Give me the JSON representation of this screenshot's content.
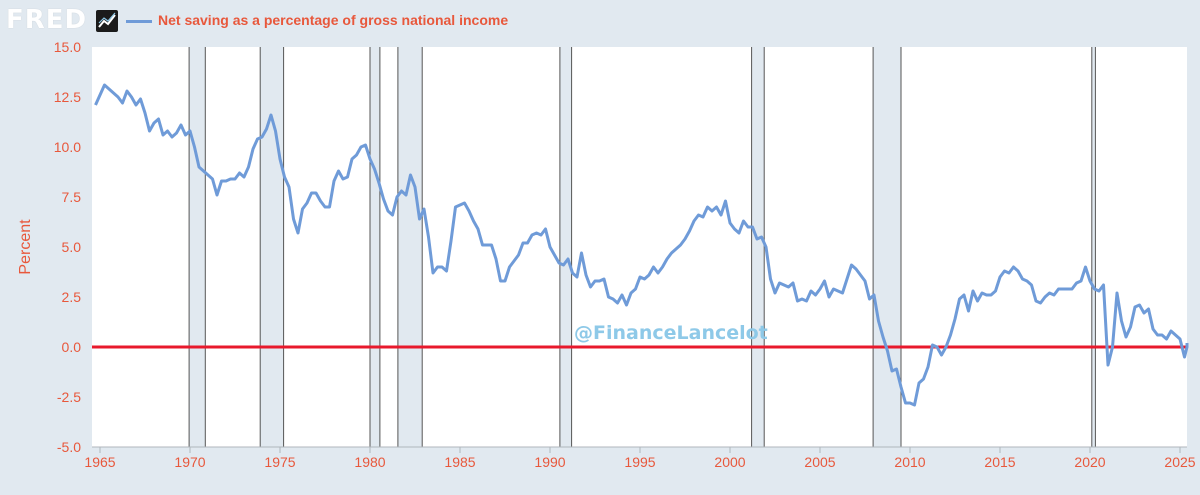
{
  "header": {
    "logo": "FRED",
    "logo_icon": "fred-chart-icon",
    "legend_label": "Net saving as a percentage of gross national income"
  },
  "watermark": "@FinanceLancelot",
  "colors": {
    "series": "#6f9bd8",
    "zero_line": "#e8192c",
    "text": "#e8583c",
    "recession": "#e1e9f0",
    "plot_bg": "#ffffff"
  },
  "chart_data": {
    "type": "line",
    "title": "",
    "xlabel": "",
    "ylabel": "Percent",
    "xlim": [
      1964.75,
      2025.75
    ],
    "ylim": [
      -5,
      15
    ],
    "xticks": [
      "1965",
      "1970",
      "1975",
      "1980",
      "1985",
      "1990",
      "1995",
      "2000",
      "2005",
      "2010",
      "2015",
      "2020",
      "2025"
    ],
    "yticks": [
      "15.0",
      "12.5",
      "10.0",
      "7.5",
      "5.0",
      "2.5",
      "0.0",
      "-2.5",
      "-5.0"
    ],
    "grid": "vertical-recessions",
    "legend_position": "top-left",
    "reference_line": {
      "y": 0,
      "color": "#e8192c"
    },
    "recessions": [
      [
        1969.95,
        1970.85
      ],
      [
        1973.9,
        1975.2
      ],
      [
        1980.0,
        1980.55
      ],
      [
        1981.55,
        1982.9
      ],
      [
        1990.55,
        1991.2
      ],
      [
        2001.2,
        2001.9
      ],
      [
        2007.95,
        2009.5
      ],
      [
        2020.1,
        2020.3
      ]
    ],
    "series": [
      {
        "name": "Net saving as a percentage of gross national income",
        "points": [
          [
            1964.75,
            12.1
          ],
          [
            1965.0,
            12.6
          ],
          [
            1965.25,
            13.1
          ],
          [
            1965.5,
            12.9
          ],
          [
            1965.75,
            12.7
          ],
          [
            1966.0,
            12.5
          ],
          [
            1966.25,
            12.2
          ],
          [
            1966.5,
            12.8
          ],
          [
            1966.75,
            12.5
          ],
          [
            1967.0,
            12.1
          ],
          [
            1967.25,
            12.4
          ],
          [
            1967.5,
            11.7
          ],
          [
            1967.75,
            10.8
          ],
          [
            1968.0,
            11.2
          ],
          [
            1968.25,
            11.4
          ],
          [
            1968.5,
            10.6
          ],
          [
            1968.75,
            10.8
          ],
          [
            1969.0,
            10.5
          ],
          [
            1969.25,
            10.7
          ],
          [
            1969.5,
            11.1
          ],
          [
            1969.75,
            10.6
          ],
          [
            1970.0,
            10.8
          ],
          [
            1970.25,
            10.0
          ],
          [
            1970.5,
            9.0
          ],
          [
            1970.75,
            8.8
          ],
          [
            1971.0,
            8.6
          ],
          [
            1971.25,
            8.4
          ],
          [
            1971.5,
            7.6
          ],
          [
            1971.75,
            8.3
          ],
          [
            1972.0,
            8.3
          ],
          [
            1972.25,
            8.4
          ],
          [
            1972.5,
            8.4
          ],
          [
            1972.75,
            8.7
          ],
          [
            1973.0,
            8.5
          ],
          [
            1973.25,
            9.0
          ],
          [
            1973.5,
            9.9
          ],
          [
            1973.75,
            10.4
          ],
          [
            1974.0,
            10.5
          ],
          [
            1974.25,
            10.9
          ],
          [
            1974.5,
            11.6
          ],
          [
            1974.75,
            10.8
          ],
          [
            1975.0,
            9.4
          ],
          [
            1975.25,
            8.5
          ],
          [
            1975.5,
            8.0
          ],
          [
            1975.75,
            6.4
          ],
          [
            1976.0,
            5.7
          ],
          [
            1976.25,
            6.9
          ],
          [
            1976.5,
            7.2
          ],
          [
            1976.75,
            7.7
          ],
          [
            1977.0,
            7.7
          ],
          [
            1977.25,
            7.3
          ],
          [
            1977.5,
            7.0
          ],
          [
            1977.75,
            7.0
          ],
          [
            1978.0,
            8.3
          ],
          [
            1978.25,
            8.8
          ],
          [
            1978.5,
            8.4
          ],
          [
            1978.75,
            8.5
          ],
          [
            1979.0,
            9.4
          ],
          [
            1979.25,
            9.6
          ],
          [
            1979.5,
            10.0
          ],
          [
            1979.75,
            10.1
          ],
          [
            1980.0,
            9.4
          ],
          [
            1980.25,
            8.9
          ],
          [
            1980.5,
            8.2
          ],
          [
            1980.75,
            7.4
          ],
          [
            1981.0,
            6.8
          ],
          [
            1981.25,
            6.6
          ],
          [
            1981.5,
            7.5
          ],
          [
            1981.75,
            7.8
          ],
          [
            1982.0,
            7.6
          ],
          [
            1982.25,
            8.6
          ],
          [
            1982.5,
            8.0
          ],
          [
            1982.75,
            6.4
          ],
          [
            1983.0,
            6.9
          ],
          [
            1983.25,
            5.5
          ],
          [
            1983.5,
            3.7
          ],
          [
            1983.75,
            4.0
          ],
          [
            1984.0,
            4.0
          ],
          [
            1984.25,
            3.8
          ],
          [
            1984.5,
            5.3
          ],
          [
            1984.75,
            7.0
          ],
          [
            1985.0,
            7.1
          ],
          [
            1985.25,
            7.2
          ],
          [
            1985.5,
            6.8
          ],
          [
            1985.75,
            6.3
          ],
          [
            1986.0,
            5.9
          ],
          [
            1986.25,
            5.1
          ],
          [
            1986.5,
            5.1
          ],
          [
            1986.75,
            5.1
          ],
          [
            1987.0,
            4.4
          ],
          [
            1987.25,
            3.3
          ],
          [
            1987.5,
            3.3
          ],
          [
            1987.75,
            4.0
          ],
          [
            1988.0,
            4.3
          ],
          [
            1988.25,
            4.6
          ],
          [
            1988.5,
            5.2
          ],
          [
            1988.75,
            5.2
          ],
          [
            1989.0,
            5.6
          ],
          [
            1989.25,
            5.7
          ],
          [
            1989.5,
            5.6
          ],
          [
            1989.75,
            5.9
          ],
          [
            1990.0,
            5.0
          ],
          [
            1990.25,
            4.6
          ],
          [
            1990.5,
            4.2
          ],
          [
            1990.75,
            4.1
          ],
          [
            1991.0,
            4.4
          ],
          [
            1991.25,
            3.7
          ],
          [
            1991.5,
            3.5
          ],
          [
            1991.75,
            4.7
          ],
          [
            1992.0,
            3.6
          ],
          [
            1992.25,
            3.0
          ],
          [
            1992.5,
            3.3
          ],
          [
            1992.75,
            3.3
          ],
          [
            1993.0,
            3.4
          ],
          [
            1993.25,
            2.5
          ],
          [
            1993.5,
            2.4
          ],
          [
            1993.75,
            2.2
          ],
          [
            1994.0,
            2.6
          ],
          [
            1994.25,
            2.1
          ],
          [
            1994.5,
            2.7
          ],
          [
            1994.75,
            2.9
          ],
          [
            1995.0,
            3.5
          ],
          [
            1995.25,
            3.4
          ],
          [
            1995.5,
            3.6
          ],
          [
            1995.75,
            4.0
          ],
          [
            1996.0,
            3.7
          ],
          [
            1996.25,
            4.0
          ],
          [
            1996.5,
            4.4
          ],
          [
            1996.75,
            4.7
          ],
          [
            1997.0,
            4.9
          ],
          [
            1997.25,
            5.1
          ],
          [
            1997.5,
            5.4
          ],
          [
            1997.75,
            5.8
          ],
          [
            1998.0,
            6.3
          ],
          [
            1998.25,
            6.6
          ],
          [
            1998.5,
            6.5
          ],
          [
            1998.75,
            7.0
          ],
          [
            1999.0,
            6.8
          ],
          [
            1999.25,
            7.0
          ],
          [
            1999.5,
            6.6
          ],
          [
            1999.75,
            7.3
          ],
          [
            2000.0,
            6.2
          ],
          [
            2000.25,
            5.9
          ],
          [
            2000.5,
            5.7
          ],
          [
            2000.75,
            6.3
          ],
          [
            2001.0,
            6.0
          ],
          [
            2001.25,
            6.0
          ],
          [
            2001.5,
            5.4
          ],
          [
            2001.75,
            5.5
          ],
          [
            2002.0,
            5.0
          ],
          [
            2002.25,
            3.4
          ],
          [
            2002.5,
            2.7
          ],
          [
            2002.75,
            3.2
          ],
          [
            2003.0,
            3.1
          ],
          [
            2003.25,
            3.0
          ],
          [
            2003.5,
            3.2
          ],
          [
            2003.75,
            2.3
          ],
          [
            2004.0,
            2.4
          ],
          [
            2004.25,
            2.3
          ],
          [
            2004.5,
            2.8
          ],
          [
            2004.75,
            2.6
          ],
          [
            2005.0,
            2.9
          ],
          [
            2005.25,
            3.3
          ],
          [
            2005.5,
            2.5
          ],
          [
            2005.75,
            2.9
          ],
          [
            2006.0,
            2.8
          ],
          [
            2006.25,
            2.7
          ],
          [
            2006.5,
            3.4
          ],
          [
            2006.75,
            4.1
          ],
          [
            2007.0,
            3.9
          ],
          [
            2007.25,
            3.6
          ],
          [
            2007.5,
            3.3
          ],
          [
            2007.75,
            2.4
          ],
          [
            2008.0,
            2.6
          ],
          [
            2008.25,
            1.3
          ],
          [
            2008.5,
            0.5
          ],
          [
            2008.75,
            -0.2
          ],
          [
            2009.0,
            -1.2
          ],
          [
            2009.25,
            -1.1
          ],
          [
            2009.5,
            -2.0
          ],
          [
            2009.75,
            -2.8
          ],
          [
            2010.0,
            -2.8
          ],
          [
            2010.25,
            -2.9
          ],
          [
            2010.5,
            -1.8
          ],
          [
            2010.75,
            -1.6
          ],
          [
            2011.0,
            -1.0
          ],
          [
            2011.25,
            0.1
          ],
          [
            2011.5,
            0.0
          ],
          [
            2011.75,
            -0.4
          ],
          [
            2012.0,
            0.0
          ],
          [
            2012.25,
            0.6
          ],
          [
            2012.5,
            1.4
          ],
          [
            2012.75,
            2.4
          ],
          [
            2013.0,
            2.6
          ],
          [
            2013.25,
            1.8
          ],
          [
            2013.5,
            2.8
          ],
          [
            2013.75,
            2.3
          ],
          [
            2014.0,
            2.7
          ],
          [
            2014.25,
            2.6
          ],
          [
            2014.5,
            2.6
          ],
          [
            2014.75,
            2.8
          ],
          [
            2015.0,
            3.5
          ],
          [
            2015.25,
            3.8
          ],
          [
            2015.5,
            3.7
          ],
          [
            2015.75,
            4.0
          ],
          [
            2016.0,
            3.8
          ],
          [
            2016.25,
            3.4
          ],
          [
            2016.5,
            3.3
          ],
          [
            2016.75,
            3.1
          ],
          [
            2017.0,
            2.3
          ],
          [
            2017.25,
            2.2
          ],
          [
            2017.5,
            2.5
          ],
          [
            2017.75,
            2.7
          ],
          [
            2018.0,
            2.6
          ],
          [
            2018.25,
            2.9
          ],
          [
            2018.5,
            2.9
          ],
          [
            2018.75,
            2.9
          ],
          [
            2019.0,
            2.9
          ],
          [
            2019.25,
            3.2
          ],
          [
            2019.5,
            3.3
          ],
          [
            2019.75,
            4.0
          ],
          [
            2020.0,
            3.3
          ],
          [
            2020.25,
            2.9
          ],
          [
            2020.5,
            2.8
          ],
          [
            2020.75,
            3.1
          ],
          [
            2021.0,
            -0.9
          ],
          [
            2021.25,
            0.0
          ],
          [
            2021.5,
            2.7
          ],
          [
            2021.75,
            1.3
          ],
          [
            2022.0,
            0.5
          ],
          [
            2022.25,
            1.0
          ],
          [
            2022.5,
            2.0
          ],
          [
            2022.75,
            2.1
          ],
          [
            2023.0,
            1.7
          ],
          [
            2023.25,
            1.9
          ],
          [
            2023.5,
            0.9
          ],
          [
            2023.75,
            0.6
          ],
          [
            2024.0,
            0.6
          ],
          [
            2024.25,
            0.4
          ],
          [
            2024.5,
            0.8
          ],
          [
            2024.75,
            0.6
          ],
          [
            2025.0,
            0.4
          ],
          [
            2025.25,
            -0.5
          ],
          [
            2025.5,
            0.0
          ],
          [
            2025.75,
            0.2
          ],
          [
            2026.0,
            0.2
          ],
          [
            2026.25,
            0.2
          ]
        ]
      }
    ]
  }
}
